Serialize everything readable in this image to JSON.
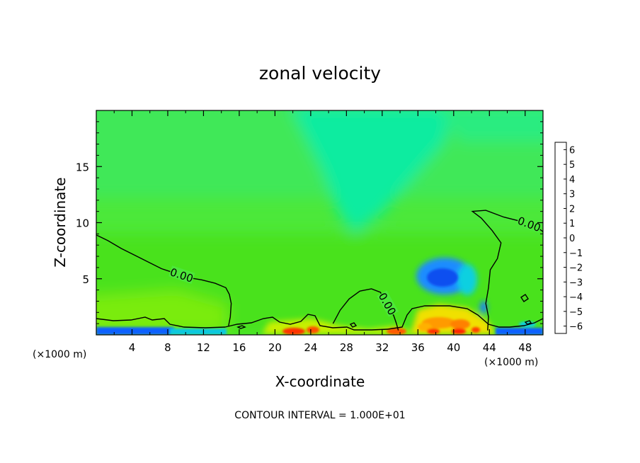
{
  "chart_data": {
    "type": "heatmap",
    "title": "zonal velocity",
    "xlabel": "X-coordinate",
    "ylabel": "Z-coordinate",
    "x_unit_label": "(×1000 m)",
    "xlim": [
      0,
      50
    ],
    "ylim": [
      0,
      20
    ],
    "x_ticks": [
      4,
      8,
      12,
      16,
      20,
      24,
      28,
      32,
      36,
      40,
      44,
      48
    ],
    "y_ticks": [
      5,
      10,
      15
    ],
    "colorbar": {
      "levels": [
        6,
        5,
        4,
        3,
        2,
        1,
        0,
        -1,
        -2,
        -3,
        -4,
        -5,
        -6
      ],
      "colors": [
        "#f4a0a0",
        "#ff3030",
        "#ff1a00",
        "#ff8c00",
        "#ffd000",
        "#e8f000",
        "#aaf000",
        "#40e000",
        "#00ee80",
        "#00ddd0",
        "#00a0ff",
        "#1050e0",
        "#1818d0",
        "#7020b0"
      ]
    },
    "contour_lines": [
      {
        "label": "0.00",
        "points": [
          [
            0,
            8.9
          ],
          [
            1.3,
            8.4
          ],
          [
            2.8,
            7.7
          ],
          [
            4.3,
            7.1
          ],
          [
            5.8,
            6.5
          ],
          [
            7.3,
            5.9
          ],
          [
            8.8,
            5.5
          ],
          [
            10.3,
            5.1
          ],
          [
            11.8,
            4.9
          ],
          [
            13.3,
            4.6
          ],
          [
            14.5,
            4.2
          ],
          [
            14.9,
            3.6
          ],
          [
            15.1,
            2.8
          ],
          [
            15.0,
            1.6
          ],
          [
            14.8,
            0.8
          ]
        ]
      },
      {
        "label": "0.00",
        "points": [
          [
            26.5,
            1.0
          ],
          [
            27.3,
            2.2
          ],
          [
            28.3,
            3.2
          ],
          [
            29.5,
            3.9
          ],
          [
            30.8,
            4.1
          ],
          [
            31.8,
            3.8
          ],
          [
            32.3,
            3.1
          ],
          [
            32.8,
            2.4
          ],
          [
            33.3,
            1.7
          ],
          [
            33.6,
            1.0
          ],
          [
            33.8,
            0.4
          ]
        ]
      },
      {
        "label": "0.00",
        "points": [
          [
            43.8,
            0.4
          ],
          [
            43.9,
            1.6
          ],
          [
            43.6,
            2.8
          ],
          [
            43.9,
            4.2
          ],
          [
            44.1,
            5.8
          ],
          [
            44.9,
            6.8
          ],
          [
            45.3,
            8.2
          ],
          [
            44.3,
            9.3
          ],
          [
            43.1,
            10.4
          ],
          [
            42.1,
            11.0
          ],
          [
            43.6,
            11.1
          ],
          [
            45.6,
            10.5
          ],
          [
            47.6,
            10.1
          ],
          [
            49.3,
            9.6
          ],
          [
            50.0,
            9.2
          ]
        ]
      }
    ],
    "contour_level_label": "0.00",
    "footer": "CONTOUR INTERVAL = 1.000E+01",
    "grid": false
  }
}
